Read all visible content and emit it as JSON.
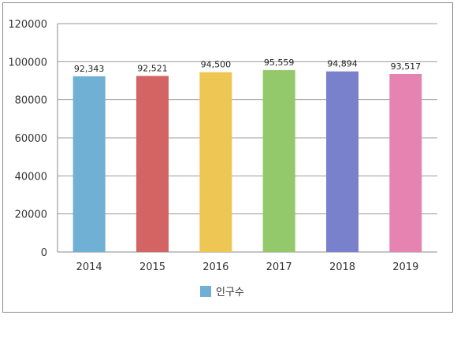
{
  "chart_data": {
    "type": "bar",
    "categories": [
      "2014",
      "2015",
      "2016",
      "2017",
      "2018",
      "2019"
    ],
    "series": [
      {
        "name": "인구수",
        "values": [
          92343,
          92521,
          94500,
          95559,
          94894,
          93517
        ],
        "data_labels": [
          "92,343",
          "92,521",
          "94,500",
          "95,559",
          "94,894",
          "93,517"
        ]
      }
    ],
    "bar_colors": [
      "#6fb0d4",
      "#d46464",
      "#eec653",
      "#93c96a",
      "#7981cc",
      "#e584b1"
    ],
    "legend_color": "#6fb0d4",
    "ylim": [
      0,
      120000
    ],
    "yticks": [
      "0",
      "20000",
      "40000",
      "60000",
      "80000",
      "100000",
      "120000"
    ],
    "ytick_values": [
      0,
      20000,
      40000,
      60000,
      80000,
      100000,
      120000
    ],
    "grid": true,
    "legend_position": "bottom",
    "title": "",
    "xlabel": "",
    "ylabel": ""
  }
}
